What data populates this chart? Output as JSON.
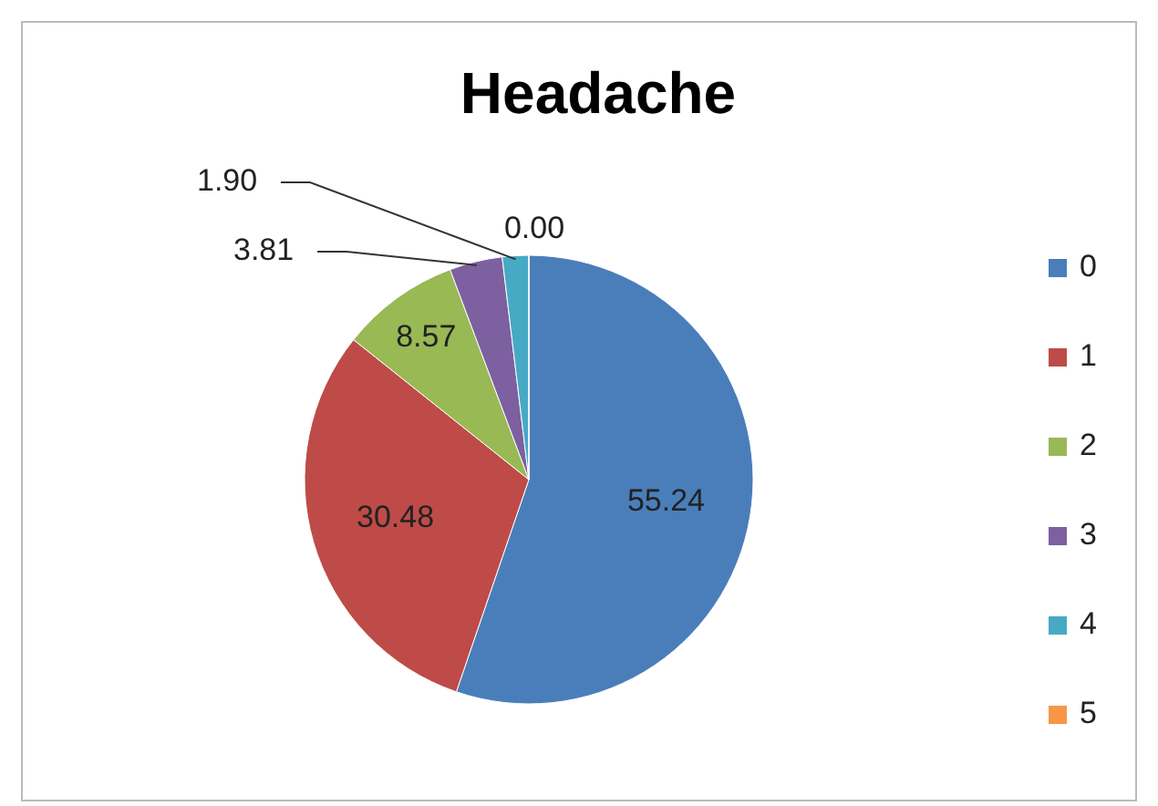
{
  "chart_data": {
    "type": "pie",
    "title": "Headache",
    "categories": [
      "0",
      "1",
      "2",
      "3",
      "4",
      "5"
    ],
    "values": [
      55.24,
      30.48,
      8.57,
      3.81,
      1.9,
      0.0
    ],
    "colors": [
      "#4a7ebb",
      "#be4b48",
      "#98b954",
      "#7d60a0",
      "#46aac5",
      "#f79646"
    ],
    "value_labels": [
      "55.24",
      "30.48",
      "8.57",
      "3.81",
      "1.90",
      "0.00"
    ],
    "legend": "right"
  }
}
